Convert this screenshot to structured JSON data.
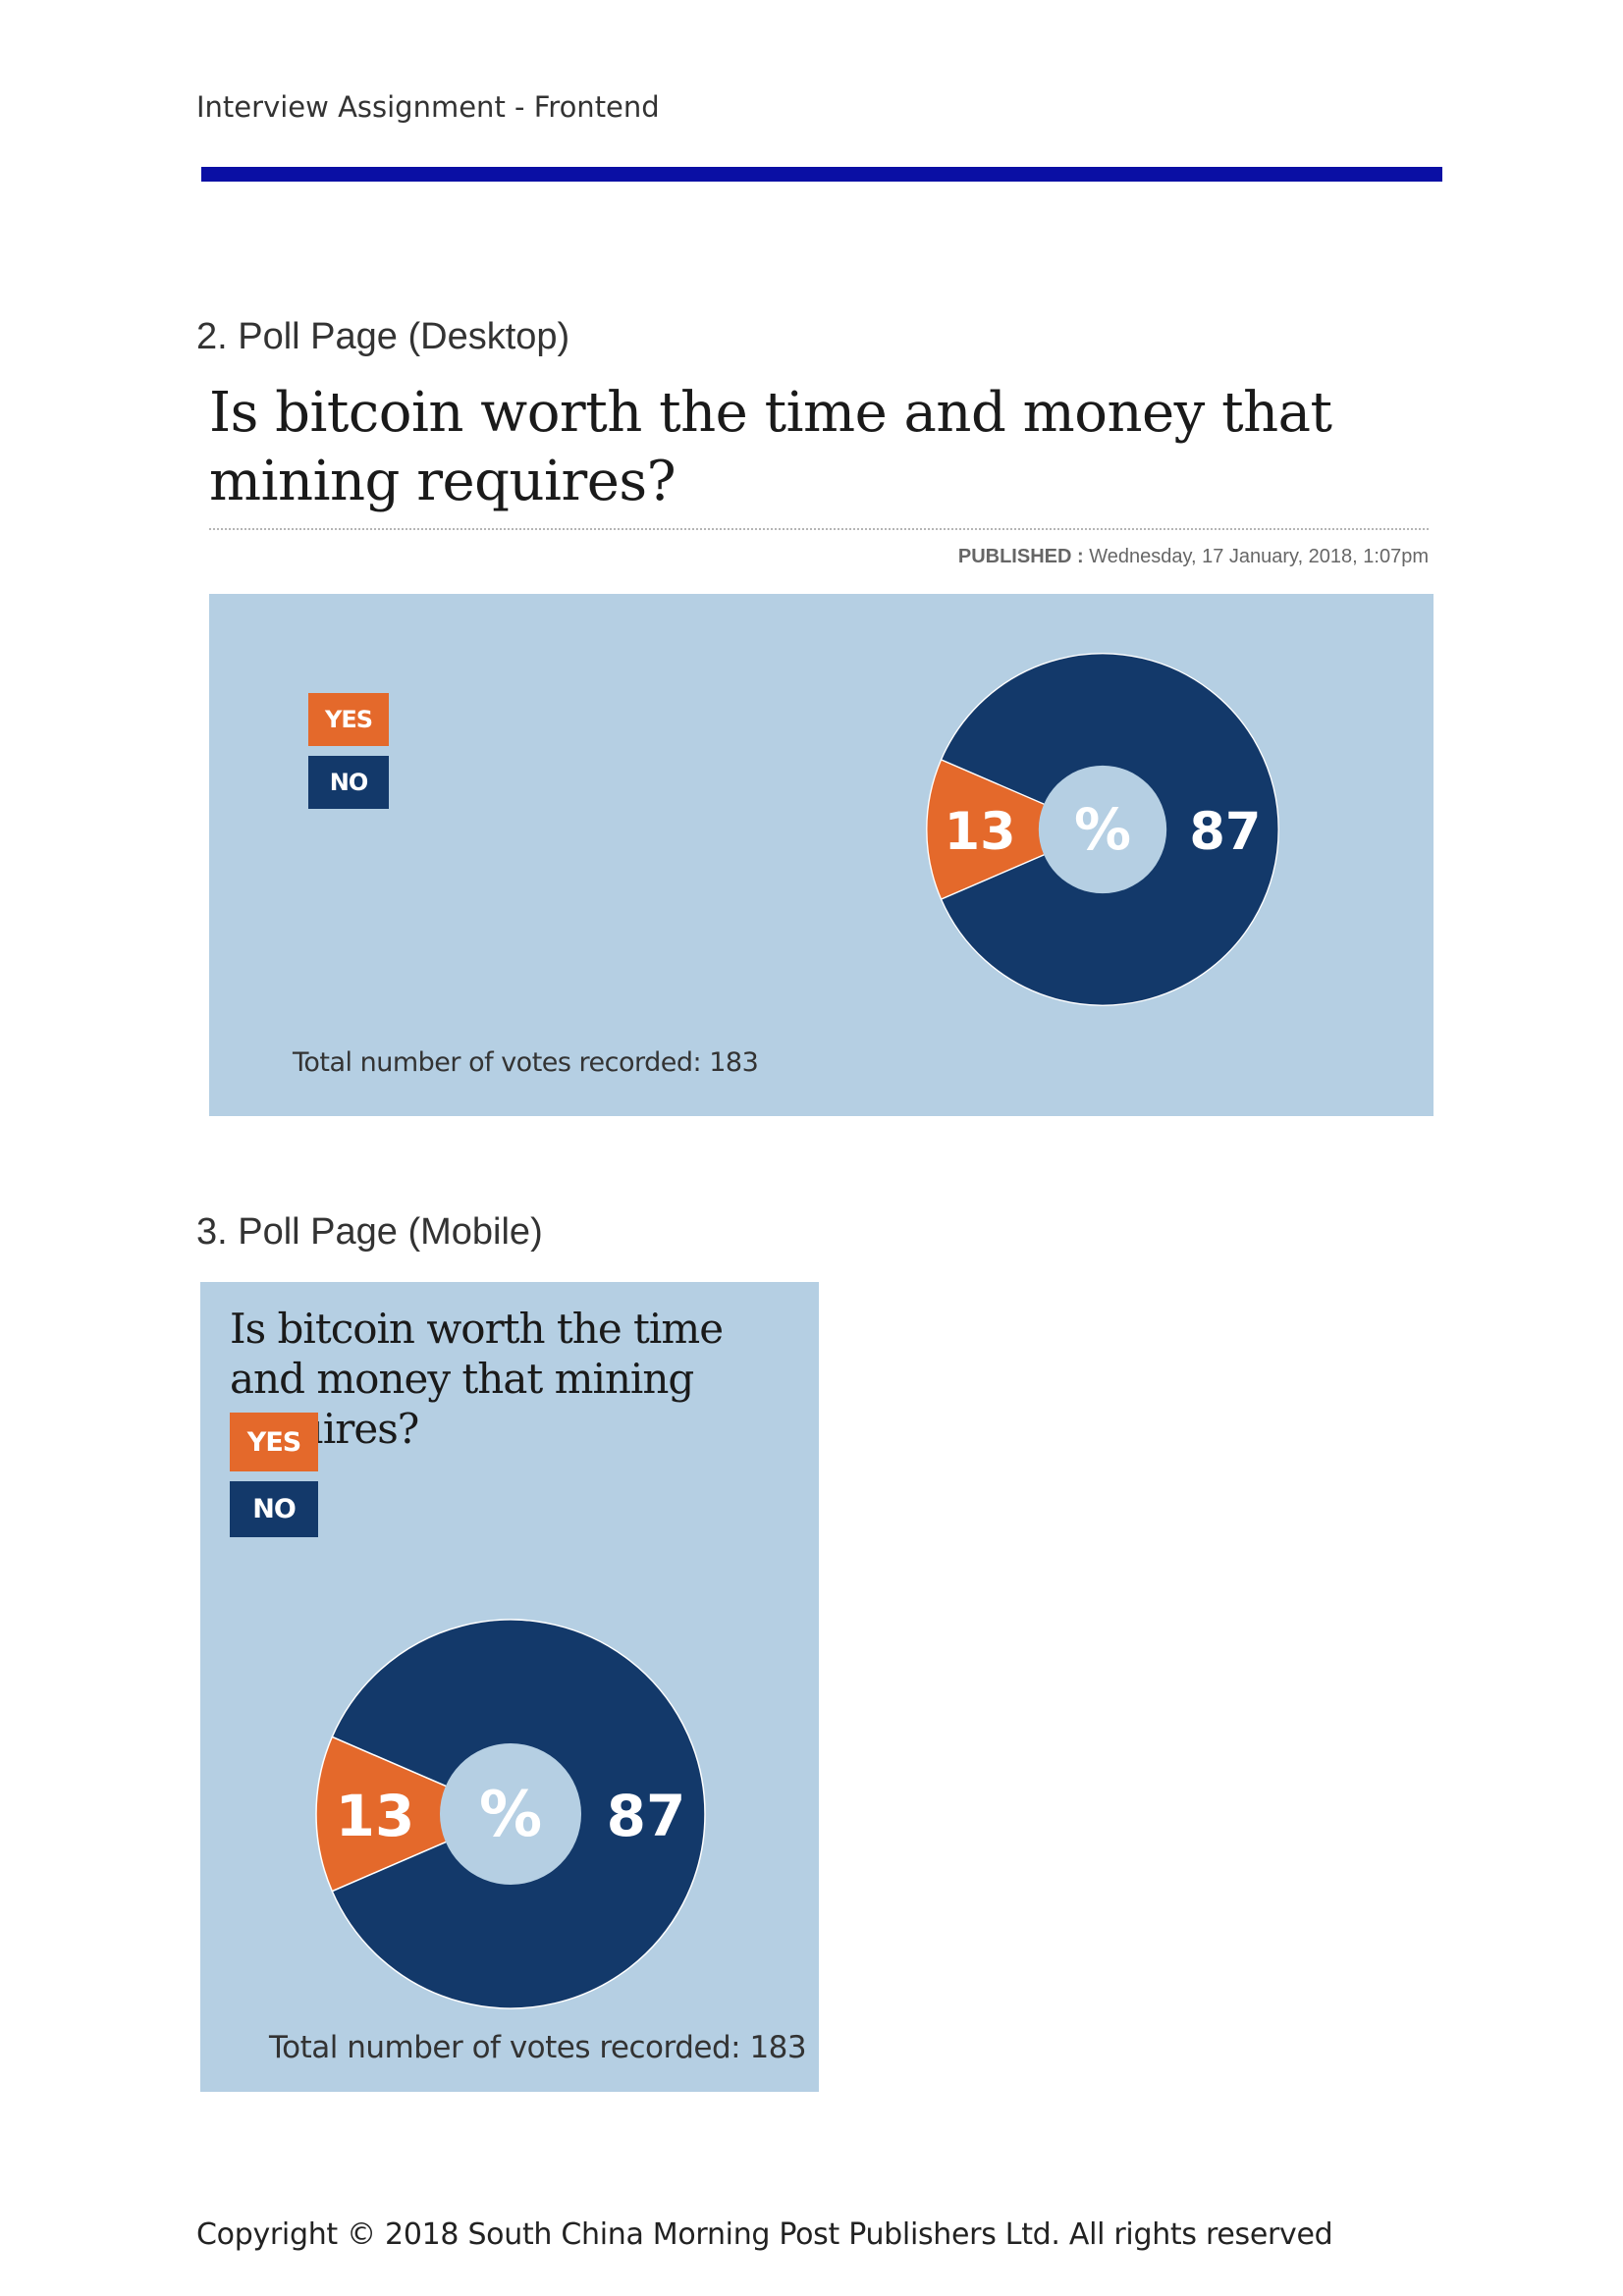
{
  "document": {
    "header": "Interview Assignment - Frontend",
    "footer": "Copyright © 2018 South China Morning Post Publishers Ltd. All rights reserved",
    "colors": {
      "header_rule": "#0a0fa4",
      "panel_bg": "#b5cfe3",
      "yes": "#e4692b",
      "no": "#13396a"
    }
  },
  "desktop_section": {
    "title": "2. Poll Page (Desktop)",
    "question": "Is bitcoin worth the time and money that mining requires?",
    "published_label": "PUBLISHED :",
    "published_date": "Wednesday, 17 January, 2018, 1:07pm",
    "legend": {
      "yes": "YES",
      "no": "NO"
    },
    "center_symbol": "%",
    "votes_text": "Total number of votes recorded: 183"
  },
  "mobile_section": {
    "title": "3. Poll Page (Mobile)",
    "question": "Is bitcoin worth the time and money that mining requires?",
    "legend": {
      "yes": "YES",
      "no": "NO"
    },
    "center_symbol": "%",
    "votes_text": "Total number of votes recorded: 183"
  },
  "chart_data": [
    {
      "type": "pie",
      "categories": [
        "YES",
        "NO"
      ],
      "values": [
        13,
        87
      ],
      "colors": [
        "#e4692b",
        "#13396a"
      ],
      "title": "",
      "labels": [
        "13",
        "87"
      ],
      "center_label": "%"
    },
    {
      "type": "pie",
      "categories": [
        "YES",
        "NO"
      ],
      "values": [
        13,
        87
      ],
      "colors": [
        "#e4692b",
        "#13396a"
      ],
      "title": "",
      "labels": [
        "13",
        "87"
      ],
      "center_label": "%"
    }
  ]
}
